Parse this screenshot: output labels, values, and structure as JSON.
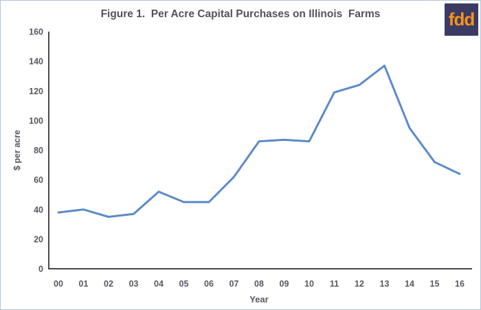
{
  "header": {
    "title": "Figure 1.  Per Acre Capital Purchases on Illinois  Farms",
    "logo_text": "fdd"
  },
  "colors": {
    "line": "#5b8ac6",
    "axis": "#2a2a2a",
    "tick_label": "#565861",
    "title_text": "#515359",
    "logo_bg": "#3b3a62",
    "logo_text": "#f7941d",
    "page_border": "#b0c5dd"
  },
  "chart_data": {
    "type": "line",
    "title": "Figure 1.  Per Acre Capital Purchases on Illinois  Farms",
    "categories": [
      "00",
      "01",
      "02",
      "03",
      "04",
      "05",
      "06",
      "07",
      "08",
      "09",
      "10",
      "11",
      "12",
      "13",
      "14",
      "15",
      "16"
    ],
    "values": [
      38,
      40,
      35,
      37,
      52,
      45,
      45,
      62,
      86,
      87,
      86,
      119,
      124,
      137,
      95,
      72,
      64
    ],
    "series_name": "Per acre capital purchases",
    "xlabel": "Year",
    "ylabel": "$ per acre",
    "ylim": [
      0,
      160
    ],
    "y_ticks": [
      "0",
      "20",
      "40",
      "60",
      "80",
      "100",
      "120",
      "140",
      "160"
    ],
    "ytick_step": 20,
    "grid": false,
    "legend": false
  }
}
